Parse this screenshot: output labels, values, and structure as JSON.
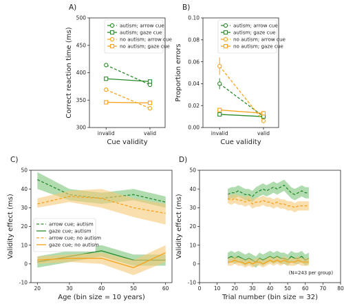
{
  "colors": {
    "autism": "#2a8a2a",
    "no_autism": "#f5a21a",
    "autism_band": "#7bc47b",
    "no_autism_band": "#f7c978"
  },
  "chart_data": [
    {
      "id": "A",
      "panel_label": "A)",
      "type": "line",
      "categories": [
        "invalid",
        "valid"
      ],
      "xlabel": "Cue validity",
      "ylabel": "Correct reaction time (ms)",
      "ylim": [
        300,
        500
      ],
      "yticks": [
        300,
        350,
        400,
        450,
        500
      ],
      "legend_position": "top-right",
      "series": [
        {
          "name": "autism; arrow cue",
          "values": [
            414,
            378
          ],
          "color": "autism",
          "dashed": true,
          "marker": "circle"
        },
        {
          "name": "autism; gaze cue",
          "values": [
            389,
            384
          ],
          "color": "autism",
          "dashed": false,
          "marker": "square"
        },
        {
          "name": "no autism; arrow cue",
          "values": [
            369,
            335
          ],
          "color": "no_autism",
          "dashed": true,
          "marker": "circle"
        },
        {
          "name": "no autism; gaze cue",
          "values": [
            346,
            345
          ],
          "color": "no_autism",
          "dashed": false,
          "marker": "square"
        }
      ]
    },
    {
      "id": "B",
      "panel_label": "B)",
      "type": "line",
      "categories": [
        "invalid",
        "valid"
      ],
      "xlabel": "Cue validity",
      "ylabel": "Proportion errors",
      "ylim": [
        0,
        0.1
      ],
      "yticks": [
        "0.00",
        "0.02",
        "0.04",
        "0.06",
        "0.08",
        "0.10"
      ],
      "legend_position": "top-right",
      "series": [
        {
          "name": "autism; arrow cue",
          "values": [
            0.04,
            0.01
          ],
          "err": [
            0.005,
            0.002
          ],
          "color": "autism",
          "dashed": true,
          "marker": "circle"
        },
        {
          "name": "autism; gaze cue",
          "values": [
            0.012,
            0.01
          ],
          "err": [
            0.002,
            0.002
          ],
          "color": "autism",
          "dashed": false,
          "marker": "square"
        },
        {
          "name": "no autism; arrow cue",
          "values": [
            0.056,
            0.006
          ],
          "err": [
            0.008,
            0.002
          ],
          "color": "no_autism",
          "dashed": true,
          "marker": "circle"
        },
        {
          "name": "no autism; gaze cue",
          "values": [
            0.016,
            0.013
          ],
          "err": [
            0.002,
            0.002
          ],
          "color": "no_autism",
          "dashed": false,
          "marker": "square"
        }
      ]
    },
    {
      "id": "C",
      "panel_label": "C)",
      "type": "area",
      "xlabel": "Age (bin size = 10 years)",
      "ylabel": "Validity effect (ms)",
      "xlim": [
        18,
        62
      ],
      "xticks": [
        20,
        30,
        40,
        50,
        60
      ],
      "ylim": [
        -10,
        50
      ],
      "yticks": [
        -10,
        0,
        10,
        20,
        30,
        40,
        50
      ],
      "legend_position": "center-left",
      "series": [
        {
          "name": "arrow cue; autism",
          "color": "autism",
          "dashed": true,
          "x": [
            20,
            30,
            40,
            50,
            60
          ],
          "y": [
            45,
            37,
            35,
            37,
            33
          ],
          "lower": [
            40,
            34,
            32,
            34,
            30
          ],
          "upper": [
            49,
            40,
            38,
            40,
            36
          ]
        },
        {
          "name": "gaze cue; autism",
          "color": "autism",
          "dashed": false,
          "x": [
            20,
            30,
            40,
            50,
            60
          ],
          "y": [
            1,
            4,
            7,
            2,
            2
          ],
          "lower": [
            -2,
            1,
            4,
            -1,
            -1
          ],
          "upper": [
            4,
            7,
            10,
            5,
            5
          ]
        },
        {
          "name": "arrow cue; no autism",
          "color": "no_autism",
          "dashed": true,
          "x": [
            20,
            30,
            40,
            50,
            60
          ],
          "y": [
            32,
            36,
            35,
            30,
            27
          ],
          "lower": [
            30,
            33,
            30,
            25,
            21
          ],
          "upper": [
            35,
            39,
            40,
            35,
            32
          ]
        },
        {
          "name": "gaze cue; no autism",
          "color": "no_autism",
          "dashed": false,
          "x": [
            20,
            30,
            40,
            50,
            60
          ],
          "y": [
            2,
            3,
            3,
            -2,
            6
          ],
          "lower": [
            0,
            1,
            0,
            -6,
            1
          ],
          "upper": [
            4,
            5,
            6,
            2,
            10
          ]
        }
      ]
    },
    {
      "id": "D",
      "panel_label": "D)",
      "type": "area",
      "xlabel": "Trial number (bin size = 32)",
      "ylabel": "Validity effect (ms)",
      "xlim": [
        0,
        80
      ],
      "xticks": [
        0,
        10,
        20,
        30,
        40,
        50,
        60,
        70,
        80
      ],
      "ylim": [
        -10,
        50
      ],
      "yticks": [
        -10,
        0,
        10,
        20,
        30,
        40,
        50
      ],
      "note": "(N=243 per group)",
      "series": [
        {
          "color": "autism",
          "dashed": true,
          "band": 3,
          "x": [
            16,
            18,
            20,
            22,
            24,
            26,
            28,
            30,
            32,
            34,
            36,
            38,
            40,
            42,
            44,
            46,
            48,
            50,
            52,
            54,
            56,
            58,
            60,
            62
          ],
          "y": [
            37,
            38,
            38,
            39,
            38,
            37,
            37,
            36,
            38,
            39,
            40,
            39,
            40,
            41,
            40,
            41,
            42,
            40,
            38,
            37,
            38,
            39,
            38,
            38
          ]
        },
        {
          "color": "no_autism",
          "dashed": true,
          "band": 2.5,
          "x": [
            16,
            18,
            20,
            22,
            24,
            26,
            28,
            30,
            32,
            34,
            36,
            38,
            40,
            42,
            44,
            46,
            48,
            50,
            52,
            54,
            56,
            58,
            60,
            62
          ],
          "y": [
            35,
            34,
            35,
            34,
            34,
            33,
            34,
            32,
            33,
            33,
            34,
            33,
            33,
            32,
            33,
            32,
            32,
            31,
            31,
            30,
            31,
            31,
            31,
            31
          ]
        },
        {
          "color": "autism",
          "dashed": false,
          "band": 3,
          "x": [
            16,
            18,
            20,
            22,
            24,
            26,
            28,
            30,
            32,
            34,
            36,
            38,
            40,
            42,
            44,
            46,
            48,
            50,
            52,
            54,
            56,
            58,
            60,
            62
          ],
          "y": [
            3,
            4,
            3,
            4,
            3,
            2,
            3,
            2,
            1,
            3,
            2,
            3,
            4,
            3,
            4,
            3,
            3,
            2,
            4,
            3,
            3,
            4,
            2,
            3
          ]
        },
        {
          "color": "no_autism",
          "dashed": false,
          "band": 2,
          "x": [
            16,
            18,
            20,
            22,
            24,
            26,
            28,
            30,
            32,
            34,
            36,
            38,
            40,
            42,
            44,
            46,
            48,
            50,
            52,
            54,
            56,
            58,
            60,
            62
          ],
          "y": [
            1,
            1,
            2,
            1,
            1,
            0,
            1,
            0,
            1,
            1,
            0,
            1,
            2,
            1,
            2,
            1,
            2,
            1,
            1,
            1,
            2,
            1,
            1,
            1
          ]
        }
      ]
    }
  ]
}
